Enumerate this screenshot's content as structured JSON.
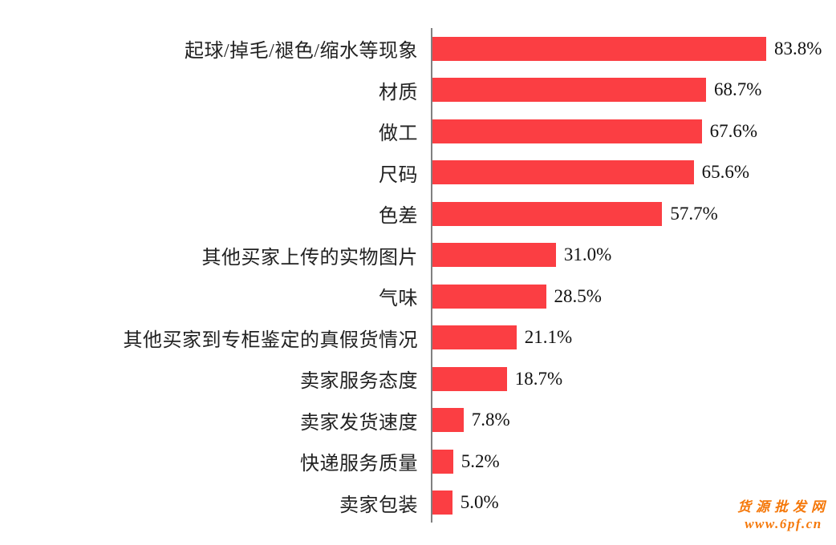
{
  "chart_data": {
    "type": "bar",
    "orientation": "horizontal",
    "title": "",
    "xlabel": "",
    "ylabel": "",
    "xlim": [
      0,
      100
    ],
    "grid": false,
    "legend": false,
    "bar_color": "#fb3e43",
    "axis_color": "#808080",
    "categories": [
      "起球/掉毛/褪色/缩水等现象",
      "材质",
      "做工",
      "尺码",
      "色差",
      "其他买家上传的实物图片",
      "气味",
      "其他买家到专柜鉴定的真假货情况",
      "卖家服务态度",
      "卖家发货速度",
      "快递服务质量",
      "卖家包装"
    ],
    "values": [
      83.8,
      68.7,
      67.6,
      65.6,
      57.7,
      31.0,
      28.5,
      21.1,
      18.7,
      7.8,
      5.2,
      5.0
    ],
    "value_labels": [
      "83.8%",
      "68.7%",
      "67.6%",
      "65.6%",
      "57.7%",
      "31.0%",
      "28.5%",
      "21.1%",
      "18.7%",
      "7.8%",
      "5.2%",
      "5.0%"
    ]
  },
  "watermark": {
    "line1": "货源批发网",
    "line2": "www.6pf.cn",
    "color": "#f5780a"
  }
}
